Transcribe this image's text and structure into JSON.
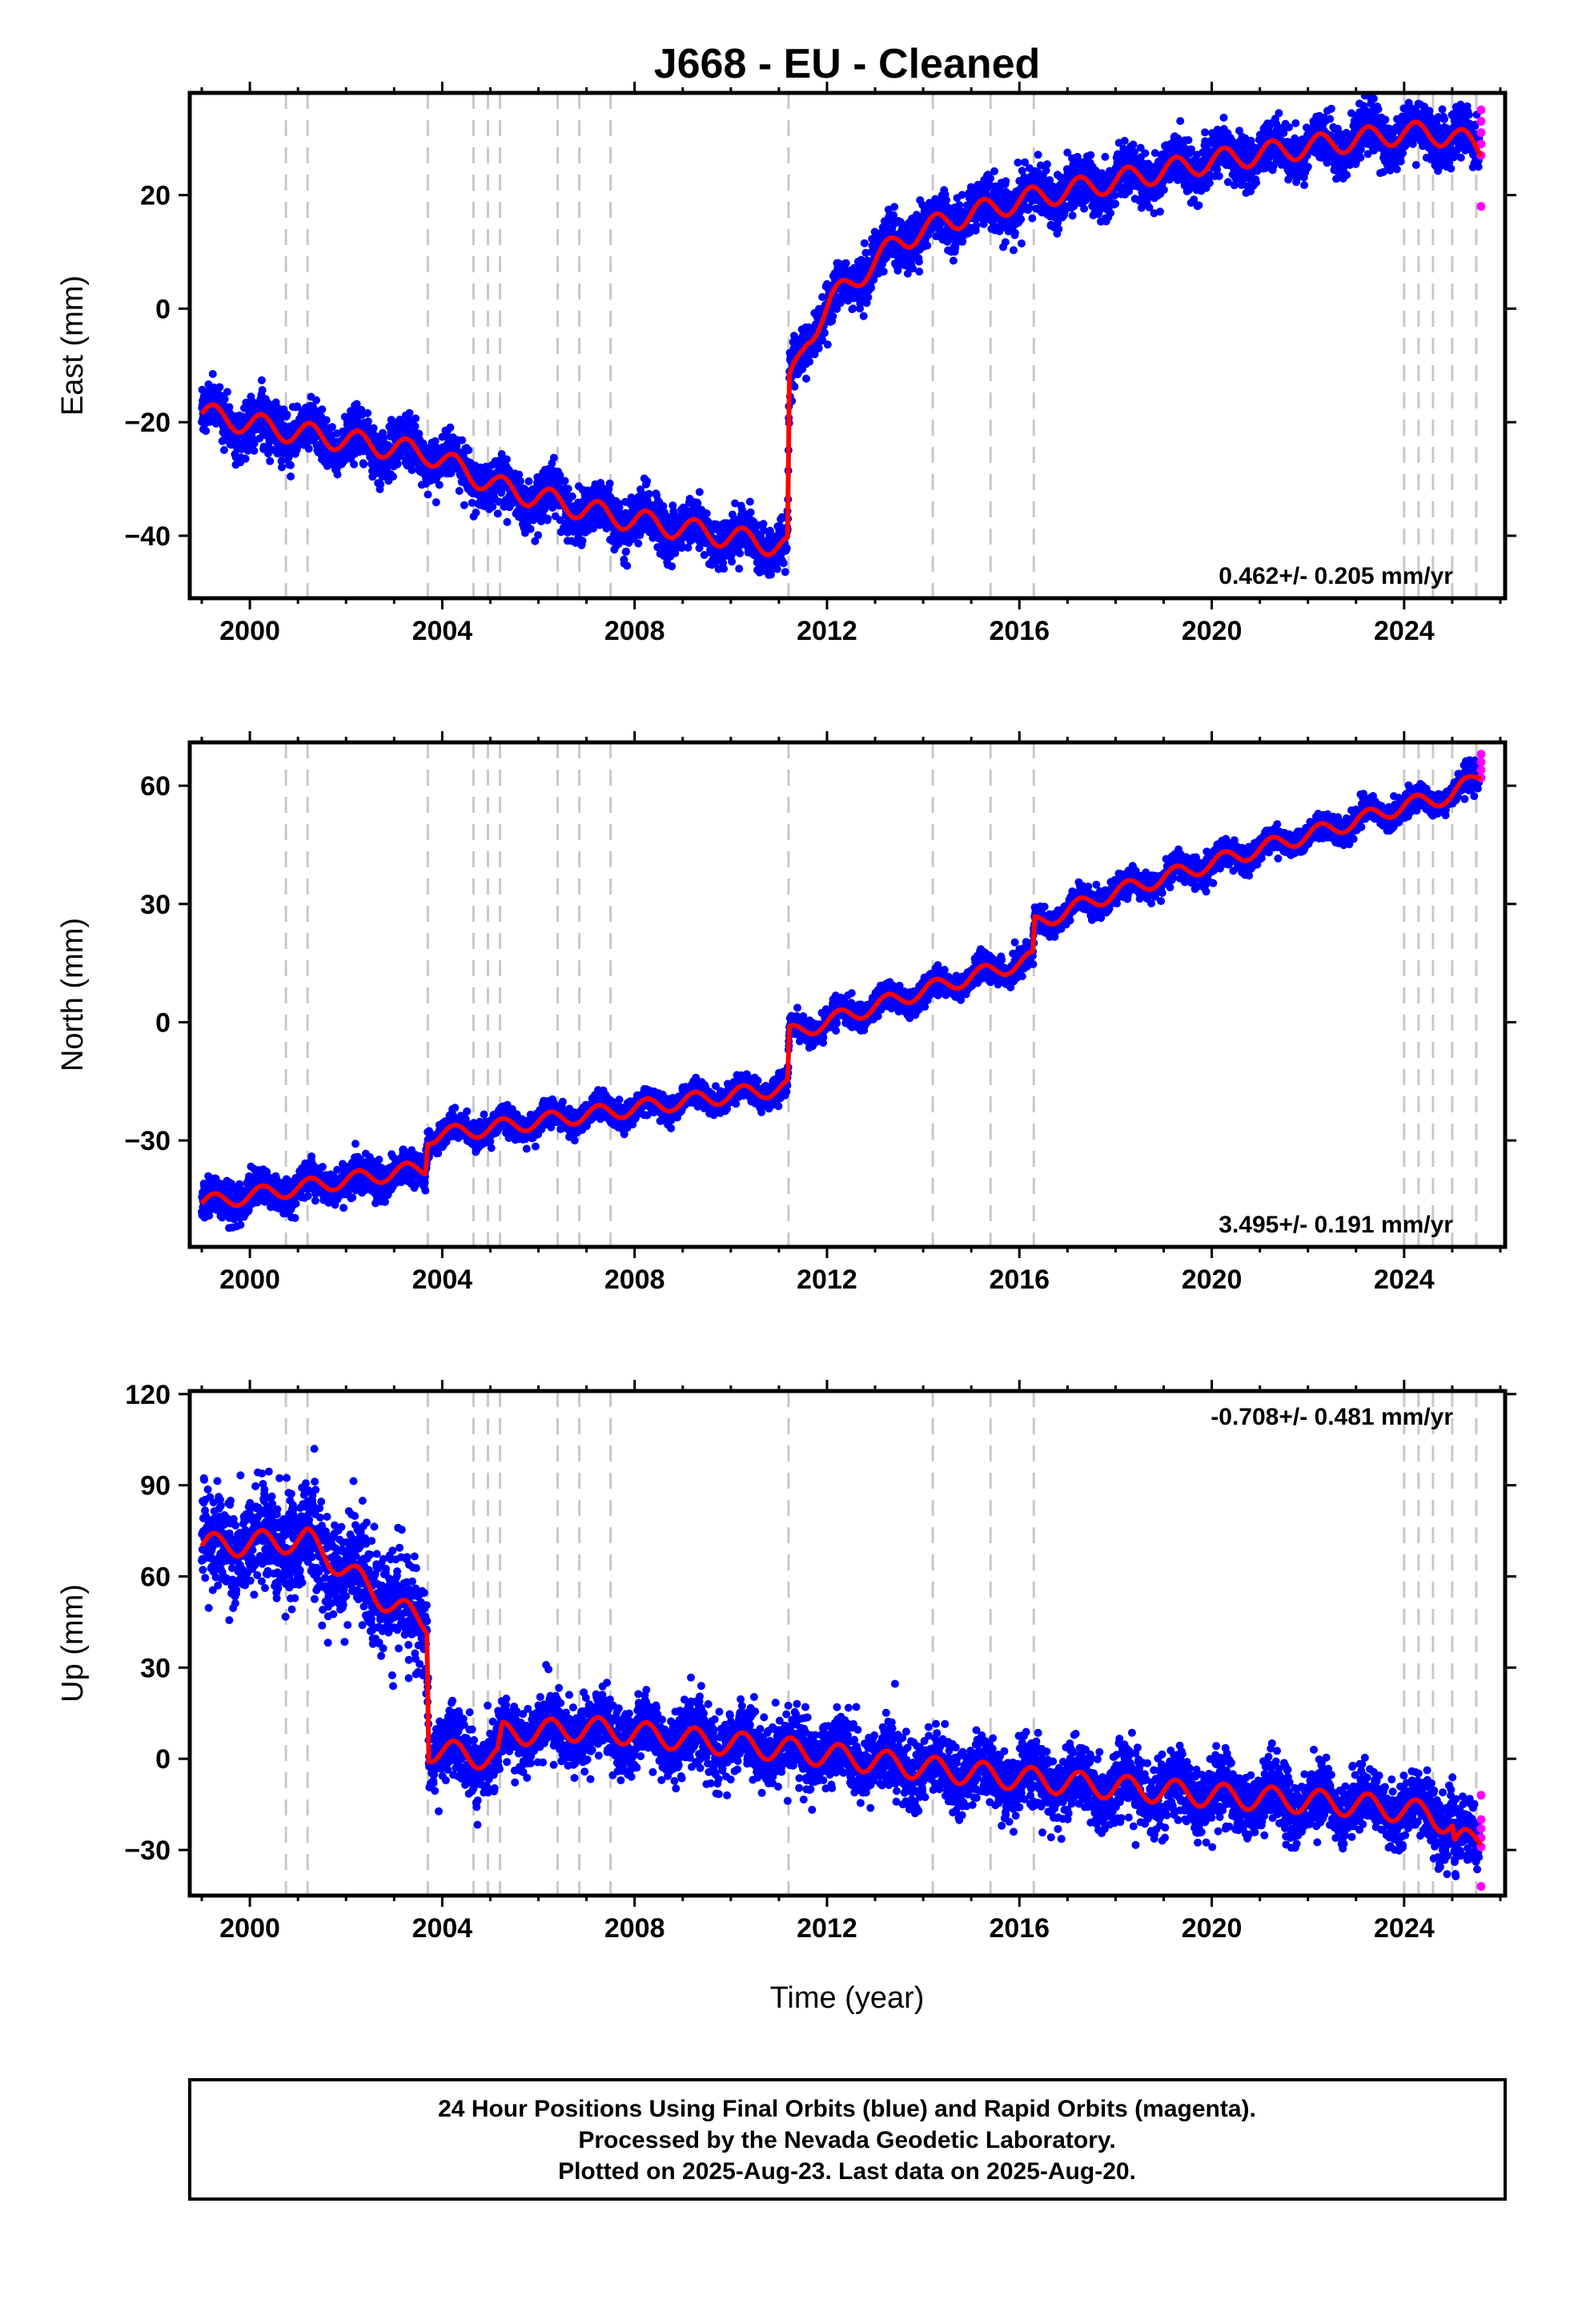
{
  "title": "J668  - EU - Cleaned",
  "xlabel": "Time (year)",
  "footer": {
    "lines": [
      "24 Hour Positions Using Final Orbits (blue) and Rapid Orbits (magenta).",
      "Processed by the Nevada Geodetic Laboratory.",
      "Plotted on 2025-Aug-23. Last data on 2025-Aug-20."
    ]
  },
  "colors": {
    "final_orbits": "#0000ff",
    "rapid_orbits": "#ff00ff",
    "model": "#ff0000",
    "event_lines": "#c8c8c8",
    "frame": "#000000"
  },
  "chart_data": [
    {
      "type": "scatter",
      "component": "east",
      "ylabel": "East (mm)",
      "rate_label": "0.462+/- 0.205 mm/yr",
      "rate_position": "bottom-right",
      "xlim": [
        1998.75,
        2026.1
      ],
      "ylim": [
        -51,
        38
      ],
      "x_ticks": [
        2000,
        2004,
        2008,
        2012,
        2016,
        2020,
        2024
      ],
      "y_ticks": [
        -40,
        -20,
        0,
        20
      ],
      "event_lines": [
        2000.75,
        2001.2,
        2003.7,
        2004.65,
        2004.95,
        2005.2,
        2006.4,
        2006.85,
        2007.5,
        2011.2,
        2014.2,
        2015.4,
        2016.3,
        2024.0,
        2024.3,
        2024.6,
        2025.0,
        2025.5
      ],
      "trend_knots": [
        [
          1999.0,
          -18.5
        ],
        [
          2000.75,
          -21.5
        ],
        [
          2003.7,
          -25.5
        ],
        [
          2005.2,
          -31.5
        ],
        [
          2007.5,
          -36.5
        ],
        [
          2011.18,
          -42.0
        ],
        [
          2011.22,
          -13.5
        ],
        [
          2011.6,
          -5.0
        ],
        [
          2012.1,
          1.5
        ],
        [
          2012.7,
          6.0
        ],
        [
          2013.5,
          12.0
        ],
        [
          2014.5,
          15.5
        ],
        [
          2016.0,
          19.0
        ],
        [
          2018.0,
          22.5
        ],
        [
          2020.0,
          26.0
        ],
        [
          2022.0,
          28.5
        ],
        [
          2024.0,
          31.0
        ],
        [
          2025.0,
          30.5
        ],
        [
          2025.6,
          28.0
        ]
      ],
      "seasonal_amplitude": 2.0,
      "scatter": 2.2,
      "rapid_orbits": [
        [
          2025.6,
          35
        ],
        [
          2025.6,
          33
        ],
        [
          2025.6,
          31
        ],
        [
          2025.6,
          29
        ],
        [
          2025.6,
          27
        ],
        [
          2025.6,
          18
        ]
      ]
    },
    {
      "type": "scatter",
      "component": "north",
      "ylabel": "North (mm)",
      "rate_label": "3.495+/- 0.191 mm/yr",
      "rate_position": "bottom-right",
      "xlim": [
        1998.75,
        2026.1
      ],
      "ylim": [
        -57,
        71
      ],
      "x_ticks": [
        2000,
        2004,
        2008,
        2012,
        2016,
        2020,
        2024
      ],
      "y_ticks": [
        -30,
        0,
        30,
        60
      ],
      "event_lines": [
        2000.75,
        2001.2,
        2003.7,
        2004.65,
        2004.95,
        2005.2,
        2006.4,
        2006.85,
        2007.5,
        2011.2,
        2014.2,
        2015.4,
        2016.3,
        2024.0,
        2024.3,
        2024.6,
        2025.0,
        2025.5
      ],
      "trend_knots": [
        [
          1999.0,
          -46.0
        ],
        [
          2001.0,
          -42.0
        ],
        [
          2003.65,
          -37.0
        ],
        [
          2003.7,
          -29.0
        ],
        [
          2007.0,
          -23.5
        ],
        [
          2011.18,
          -16.5
        ],
        [
          2011.22,
          -3.0
        ],
        [
          2014.0,
          8.0
        ],
        [
          2016.28,
          16.0
        ],
        [
          2016.32,
          25.0
        ],
        [
          2018.0,
          33.0
        ],
        [
          2021.0,
          44.0
        ],
        [
          2023.0,
          51.0
        ],
        [
          2024.0,
          55.0
        ],
        [
          2025.0,
          57.5
        ],
        [
          2025.6,
          63.0
        ]
      ],
      "seasonal_amplitude": 2.0,
      "scatter": 1.6,
      "rapid_orbits": [
        [
          2025.6,
          68
        ],
        [
          2025.6,
          66
        ],
        [
          2025.6,
          64
        ],
        [
          2025.6,
          62
        ]
      ]
    },
    {
      "type": "scatter",
      "component": "up",
      "ylabel": "Up (mm)",
      "rate_label": "-0.708+/- 0.481 mm/yr",
      "rate_position": "top-right",
      "xlim": [
        1998.75,
        2026.1
      ],
      "ylim": [
        -45,
        121
      ],
      "x_ticks": [
        2000,
        2004,
        2008,
        2012,
        2016,
        2020,
        2024
      ],
      "y_ticks": [
        -30,
        0,
        30,
        60,
        90,
        120
      ],
      "event_lines": [
        2000.75,
        2001.2,
        2003.7,
        2004.65,
        2004.95,
        2005.2,
        2006.4,
        2006.85,
        2007.5,
        2011.2,
        2014.2,
        2015.4,
        2016.3,
        2024.0,
        2024.3,
        2024.6,
        2025.0,
        2025.5
      ],
      "trend_knots": [
        [
          1999.0,
          70.0
        ],
        [
          2001.2,
          72.0
        ],
        [
          2002.0,
          62.0
        ],
        [
          2003.0,
          50.0
        ],
        [
          2003.5,
          46.0
        ],
        [
          2003.68,
          45.0
        ],
        [
          2003.72,
          3.0
        ],
        [
          2005.15,
          0.0
        ],
        [
          2005.25,
          8.0
        ],
        [
          2007.0,
          10.0
        ],
        [
          2011.2,
          3.0
        ],
        [
          2014.0,
          -3.0
        ],
        [
          2017.0,
          -8.0
        ],
        [
          2020.0,
          -12.0
        ],
        [
          2023.0,
          -15.0
        ],
        [
          2024.5,
          -18.0
        ],
        [
          2025.0,
          -22.0
        ],
        [
          2025.05,
          -28.0
        ],
        [
          2025.6,
          -26.0
        ]
      ],
      "seasonal_amplitude": 4.0,
      "scatter": 5.5,
      "rapid_orbits": [
        [
          2025.6,
          -12
        ],
        [
          2025.6,
          -20
        ],
        [
          2025.6,
          -23
        ],
        [
          2025.6,
          -26
        ],
        [
          2025.6,
          -29
        ],
        [
          2025.6,
          -42
        ]
      ]
    }
  ]
}
